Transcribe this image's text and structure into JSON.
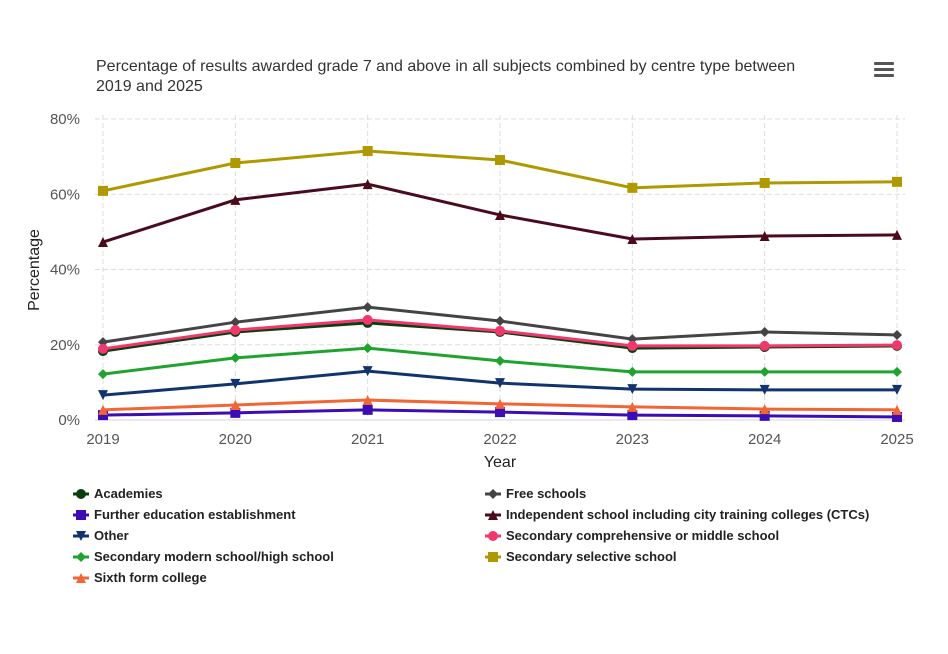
{
  "menu_icon": "hamburger-menu-icon",
  "chart_data": {
    "type": "line",
    "title": "Percentage of results awarded grade 7 and above in all subjects combined by centre type between 2019 and 2025",
    "xlabel": "Year",
    "ylabel": "Percentage",
    "x": [
      "2019",
      "2020",
      "2021",
      "2022",
      "2023",
      "2024",
      "2025"
    ],
    "ylim": [
      0,
      80
    ],
    "yticks": [
      "0%",
      "20%",
      "40%",
      "60%",
      "80%"
    ],
    "grid": true,
    "legend_position": "bottom",
    "series": [
      {
        "name": "Academies",
        "color": "#0b3d12",
        "marker": "circle",
        "values": [
          18.3,
          23.4,
          25.8,
          23.4,
          19.1,
          19.4,
          19.7
        ]
      },
      {
        "name": "Free schools",
        "color": "#444444",
        "marker": "diamond",
        "values": [
          20.7,
          26.0,
          30.0,
          26.3,
          21.5,
          23.4,
          22.6
        ]
      },
      {
        "name": "Further education establishment",
        "color": "#3c0db5",
        "marker": "square",
        "values": [
          1.3,
          1.9,
          2.7,
          2.1,
          1.3,
          1.1,
          0.8
        ]
      },
      {
        "name": "Independent school including city training colleges (CTCs)",
        "color": "#4a0b1c",
        "marker": "triangle",
        "values": [
          47.3,
          58.5,
          62.7,
          54.5,
          48.1,
          48.9,
          49.2
        ]
      },
      {
        "name": "Other",
        "color": "#12336e",
        "marker": "triangle-down",
        "values": [
          6.6,
          9.6,
          13.0,
          9.8,
          8.2,
          8.0,
          8.0
        ]
      },
      {
        "name": "Secondary comprehensive or middle school",
        "color": "#f0386c",
        "marker": "circle",
        "values": [
          18.9,
          23.9,
          26.6,
          23.7,
          19.7,
          19.7,
          19.9
        ]
      },
      {
        "name": "Secondary modern school/high school",
        "color": "#1fa32f",
        "marker": "diamond",
        "values": [
          12.2,
          16.5,
          19.1,
          15.7,
          12.8,
          12.8,
          12.8
        ]
      },
      {
        "name": "Secondary selective school",
        "color": "#b09800",
        "marker": "square",
        "values": [
          60.9,
          68.3,
          71.5,
          69.1,
          61.7,
          63.0,
          63.3
        ]
      },
      {
        "name": "Sixth form college",
        "color": "#f26535",
        "marker": "triangle",
        "values": [
          2.7,
          4.0,
          5.3,
          4.3,
          3.5,
          2.9,
          2.7
        ]
      }
    ]
  }
}
